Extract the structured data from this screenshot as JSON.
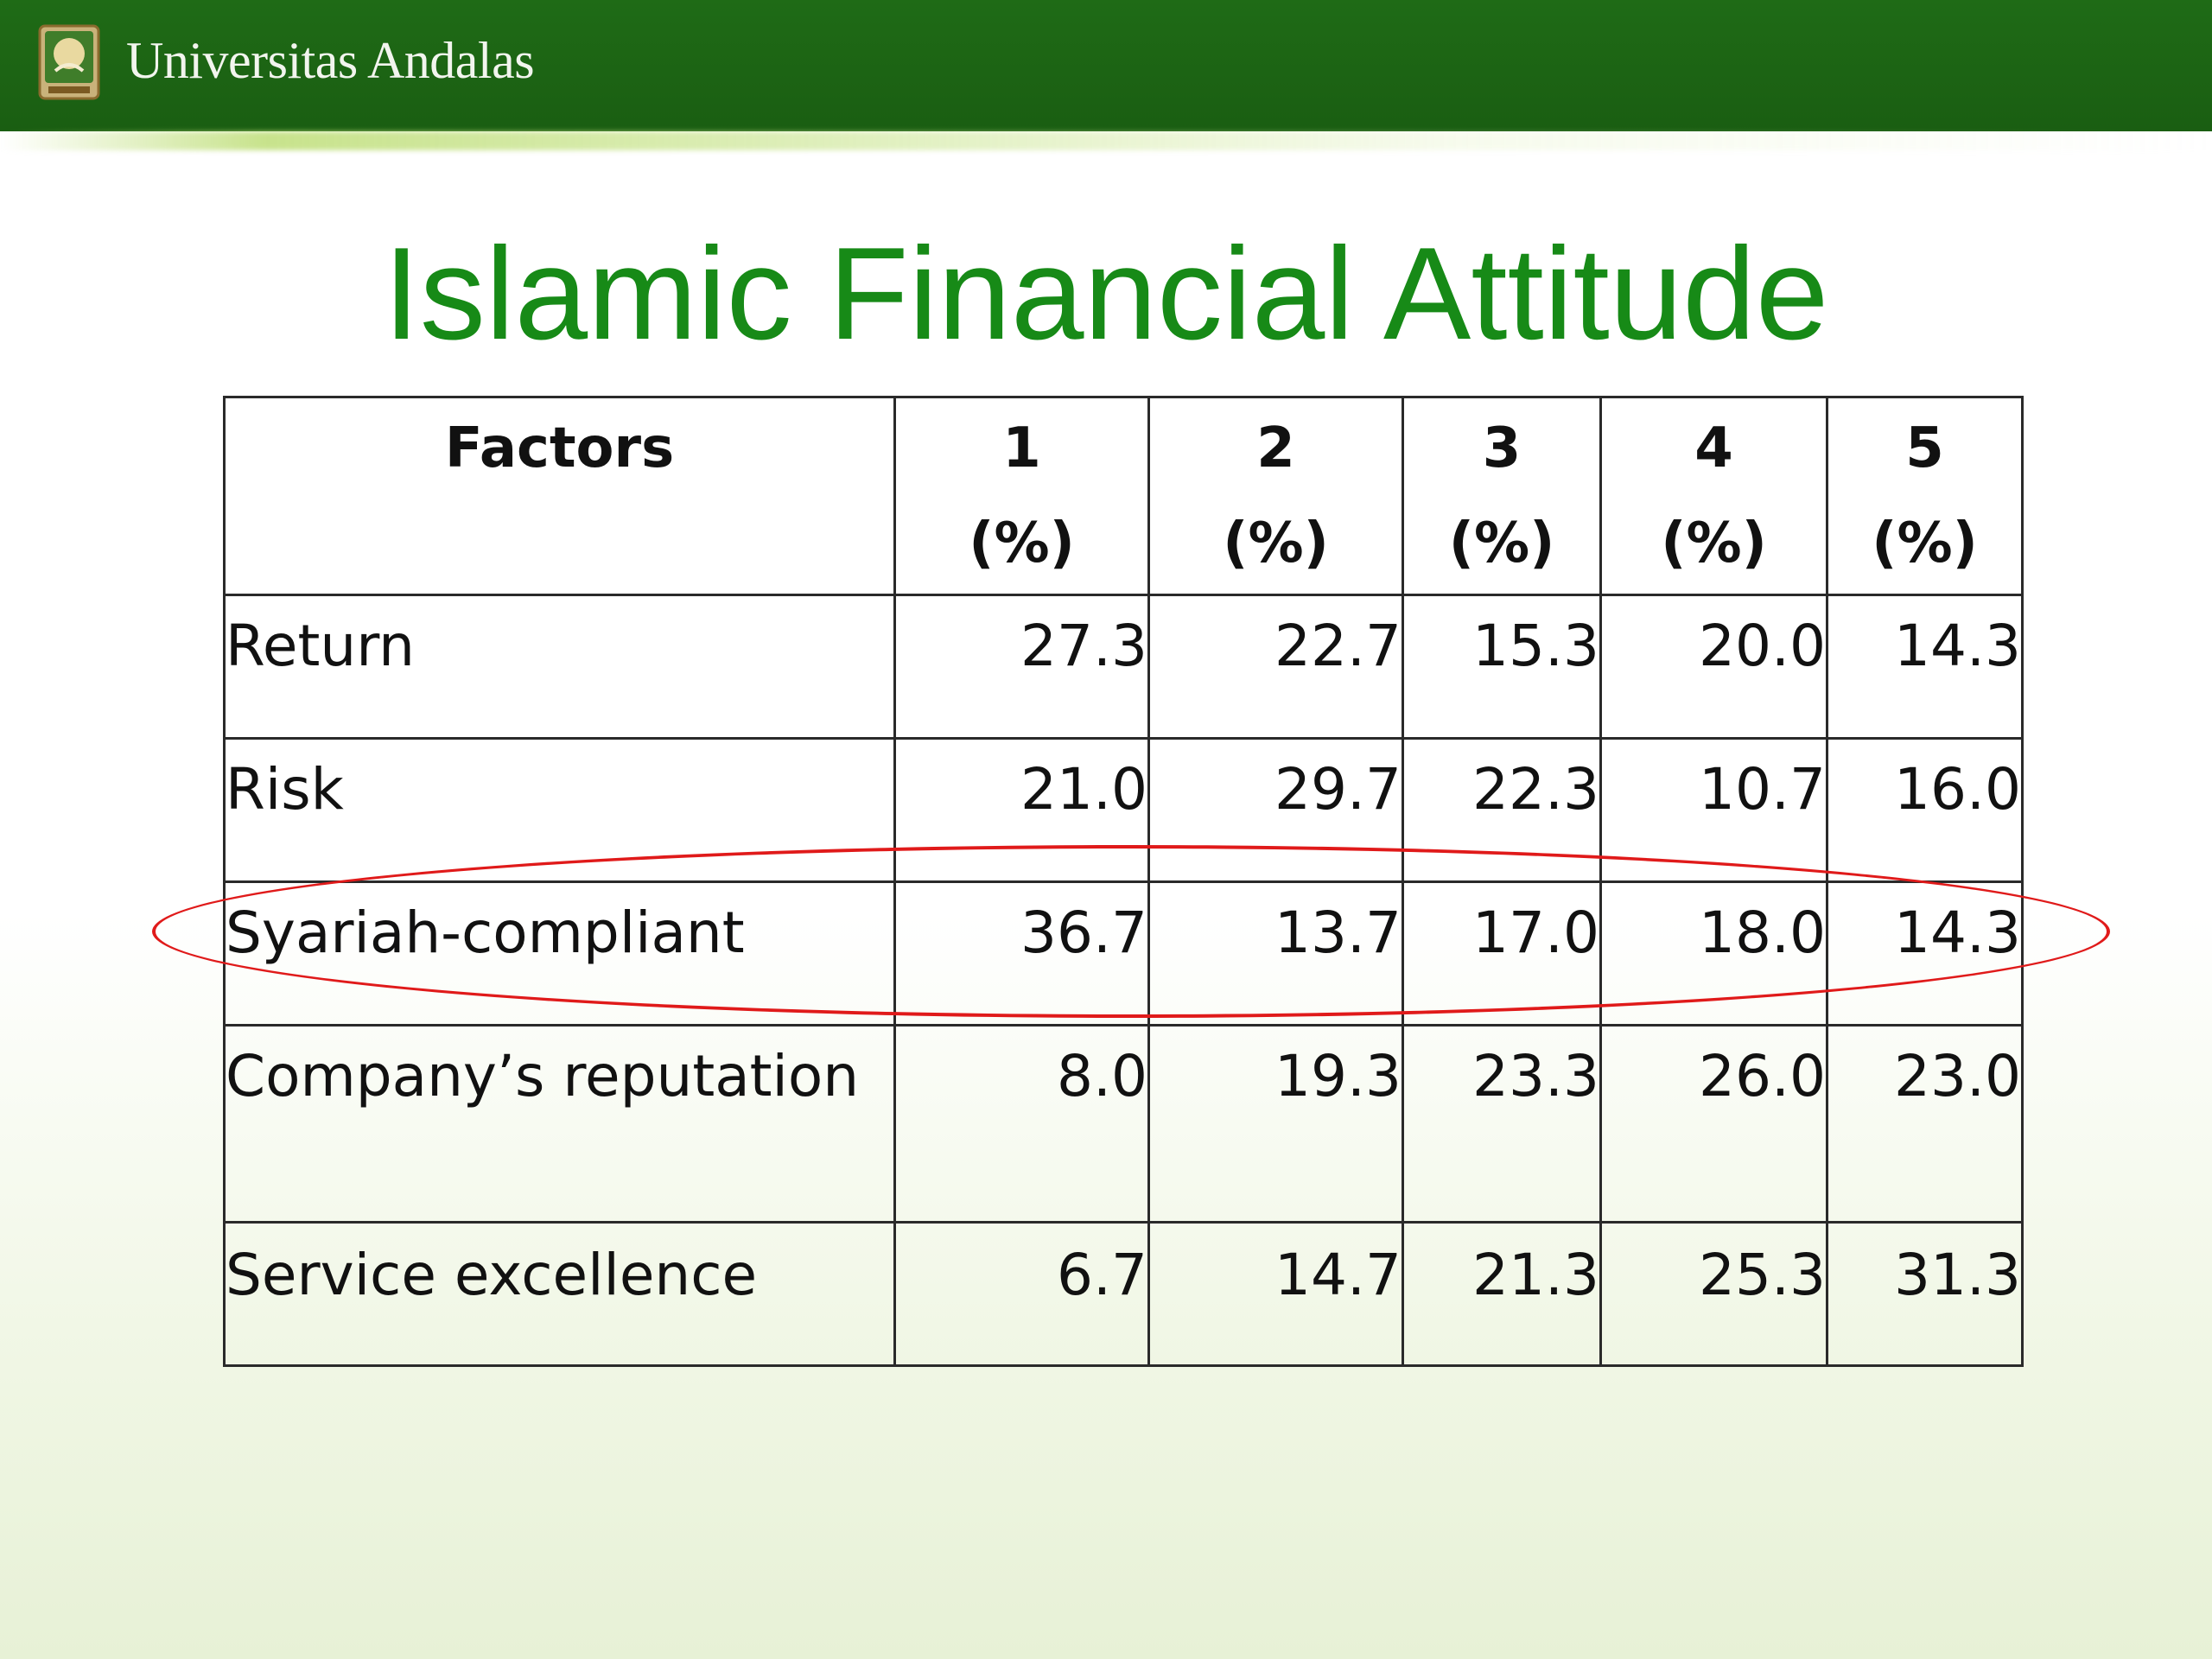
{
  "header": {
    "institution": "Universitas Andalas",
    "logo_icon": "university-seal-icon"
  },
  "title": "Islamic Financial Attitude",
  "table": {
    "headers": [
      {
        "top": "Factors",
        "bottom": ""
      },
      {
        "top": "1",
        "bottom": "(%)"
      },
      {
        "top": "2",
        "bottom": "(%)"
      },
      {
        "top": "3",
        "bottom": "(%)"
      },
      {
        "top": "4",
        "bottom": "(%)"
      },
      {
        "top": "5",
        "bottom": "(%)"
      }
    ],
    "rows": [
      {
        "factor": "Return",
        "values": [
          "27.3",
          "22.7",
          "15.3",
          "20.0",
          "14.3"
        ]
      },
      {
        "factor": "Risk",
        "values": [
          "21.0",
          "29.7",
          "22.3",
          "10.7",
          "16.0"
        ]
      },
      {
        "factor": "Syariah-compliant",
        "values": [
          "36.7",
          "13.7",
          "17.0",
          "18.0",
          "14.3"
        ]
      },
      {
        "factor": "Company’s reputation",
        "values": [
          "8.0",
          "19.3",
          "23.3",
          "26.0",
          "23.0"
        ]
      },
      {
        "factor": "Service excellence",
        "values": [
          "6.7",
          "14.7",
          "21.3",
          "25.3",
          "31.3"
        ]
      }
    ],
    "highlighted_row": "Syariah-compliant"
  },
  "colors": {
    "header_bar": "#1f6b16",
    "title": "#178a17",
    "highlight": "#e01a1a"
  }
}
